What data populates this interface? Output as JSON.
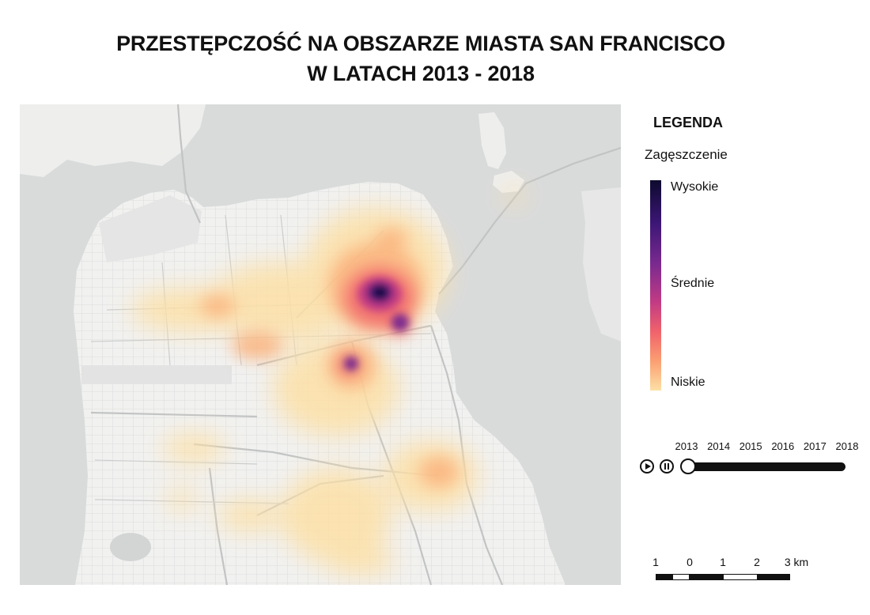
{
  "title": {
    "line1": "PRZESTĘPCZOŚĆ NA OBSZARZE MIASTA SAN FRANCISCO",
    "line2": "W LATACH 2013 - 2018"
  },
  "legend": {
    "heading": "LEGENDA",
    "subheading": "Zagęszczenie",
    "high": "Wysokie",
    "mid": "Średnie",
    "low": "Niskie",
    "colors": [
      "#0d0a2e",
      "#3b1675",
      "#7b2a8f",
      "#c23b84",
      "#f0626b",
      "#fb9f72",
      "#fde0a6"
    ]
  },
  "timeline": {
    "years": [
      "2013",
      "2014",
      "2015",
      "2016",
      "2017",
      "2018"
    ],
    "selected_year": "2013",
    "position_fraction": 0.0,
    "play_icon": "play-icon",
    "pause_icon": "pause-icon"
  },
  "scale": {
    "labels": [
      "1",
      "0",
      "1",
      "2",
      "3 km"
    ]
  },
  "map": {
    "water_color": "#d9dbdb",
    "land_color": "#f1f1f0",
    "road_color": "#c2c4c4",
    "style": "heatmap"
  }
}
